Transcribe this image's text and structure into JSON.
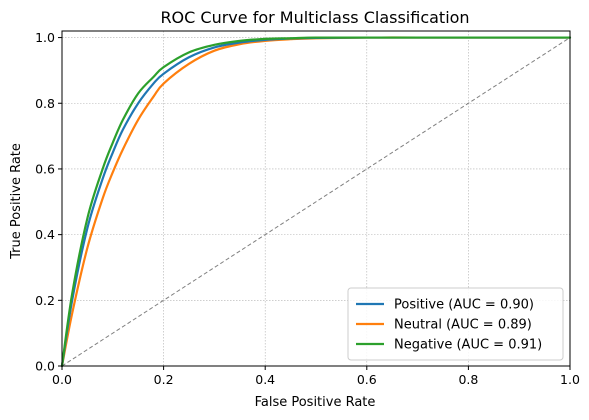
{
  "chart_data": {
    "type": "line",
    "title": "ROC Curve for Multiclass Classification",
    "xlabel": "False Positive Rate",
    "ylabel": "True Positive Rate",
    "xlim": [
      0.0,
      1.0
    ],
    "ylim": [
      0.0,
      1.02
    ],
    "xticks": [
      "0.0",
      "0.2",
      "0.4",
      "0.6",
      "0.8",
      "1.0"
    ],
    "yticks": [
      "0.0",
      "0.2",
      "0.4",
      "0.6",
      "0.8",
      "1.0"
    ],
    "grid": true,
    "legend_position": "bottom-right",
    "x": [
      0.0,
      0.02,
      0.05,
      0.08,
      0.1,
      0.12,
      0.15,
      0.18,
      0.2,
      0.25,
      0.3,
      0.35,
      0.4,
      0.45,
      0.5,
      0.6,
      0.7,
      0.8,
      0.9,
      1.0
    ],
    "series": [
      {
        "name": "Positive (AUC = 0.90)",
        "color": "#1f77b4",
        "values": [
          0.0,
          0.2,
          0.42,
          0.57,
          0.65,
          0.72,
          0.8,
          0.86,
          0.89,
          0.94,
          0.97,
          0.985,
          0.993,
          0.997,
          0.999,
          1.0,
          1.0,
          1.0,
          1.0,
          1.0
        ]
      },
      {
        "name": "Neutral (AUC = 0.89)",
        "color": "#ff7f0e",
        "values": [
          0.0,
          0.16,
          0.36,
          0.51,
          0.59,
          0.66,
          0.75,
          0.82,
          0.86,
          0.92,
          0.96,
          0.98,
          0.99,
          0.995,
          0.998,
          1.0,
          1.0,
          1.0,
          1.0,
          1.0
        ]
      },
      {
        "name": "Negative (AUC = 0.91)",
        "color": "#2ca02c",
        "values": [
          0.0,
          0.22,
          0.45,
          0.6,
          0.68,
          0.75,
          0.83,
          0.88,
          0.91,
          0.955,
          0.978,
          0.99,
          0.996,
          0.998,
          1.0,
          1.0,
          1.0,
          1.0,
          1.0,
          1.0
        ]
      }
    ],
    "reference_line": {
      "x": [
        0.0,
        1.0
      ],
      "y": [
        0.0,
        1.0
      ],
      "color": "#808080",
      "style": "dashed"
    }
  }
}
